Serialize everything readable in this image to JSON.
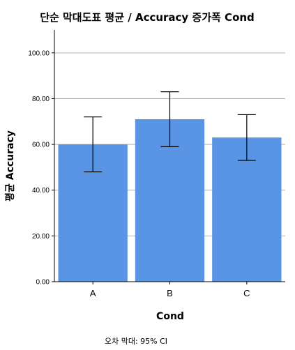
{
  "chart_data": {
    "type": "bar",
    "title": "단순 막대도표 평균 / Accuracy 증가폭 Cond",
    "xlabel": "Cond",
    "ylabel": "평균 Accuracy",
    "categories": [
      "A",
      "B",
      "C"
    ],
    "values": [
      60,
      71,
      63
    ],
    "error_low": [
      48,
      59,
      53
    ],
    "error_high": [
      72,
      83,
      73
    ],
    "ylim": [
      0,
      110
    ],
    "yticks": [
      "0.00",
      "20.00",
      "40.00",
      "60.00",
      "80.00",
      "100.00"
    ],
    "ytick_values": [
      0,
      20,
      40,
      60,
      80,
      100
    ],
    "grid": true,
    "bar_color": "#5995E4",
    "footnote": "오차 막대: 95% CI"
  }
}
